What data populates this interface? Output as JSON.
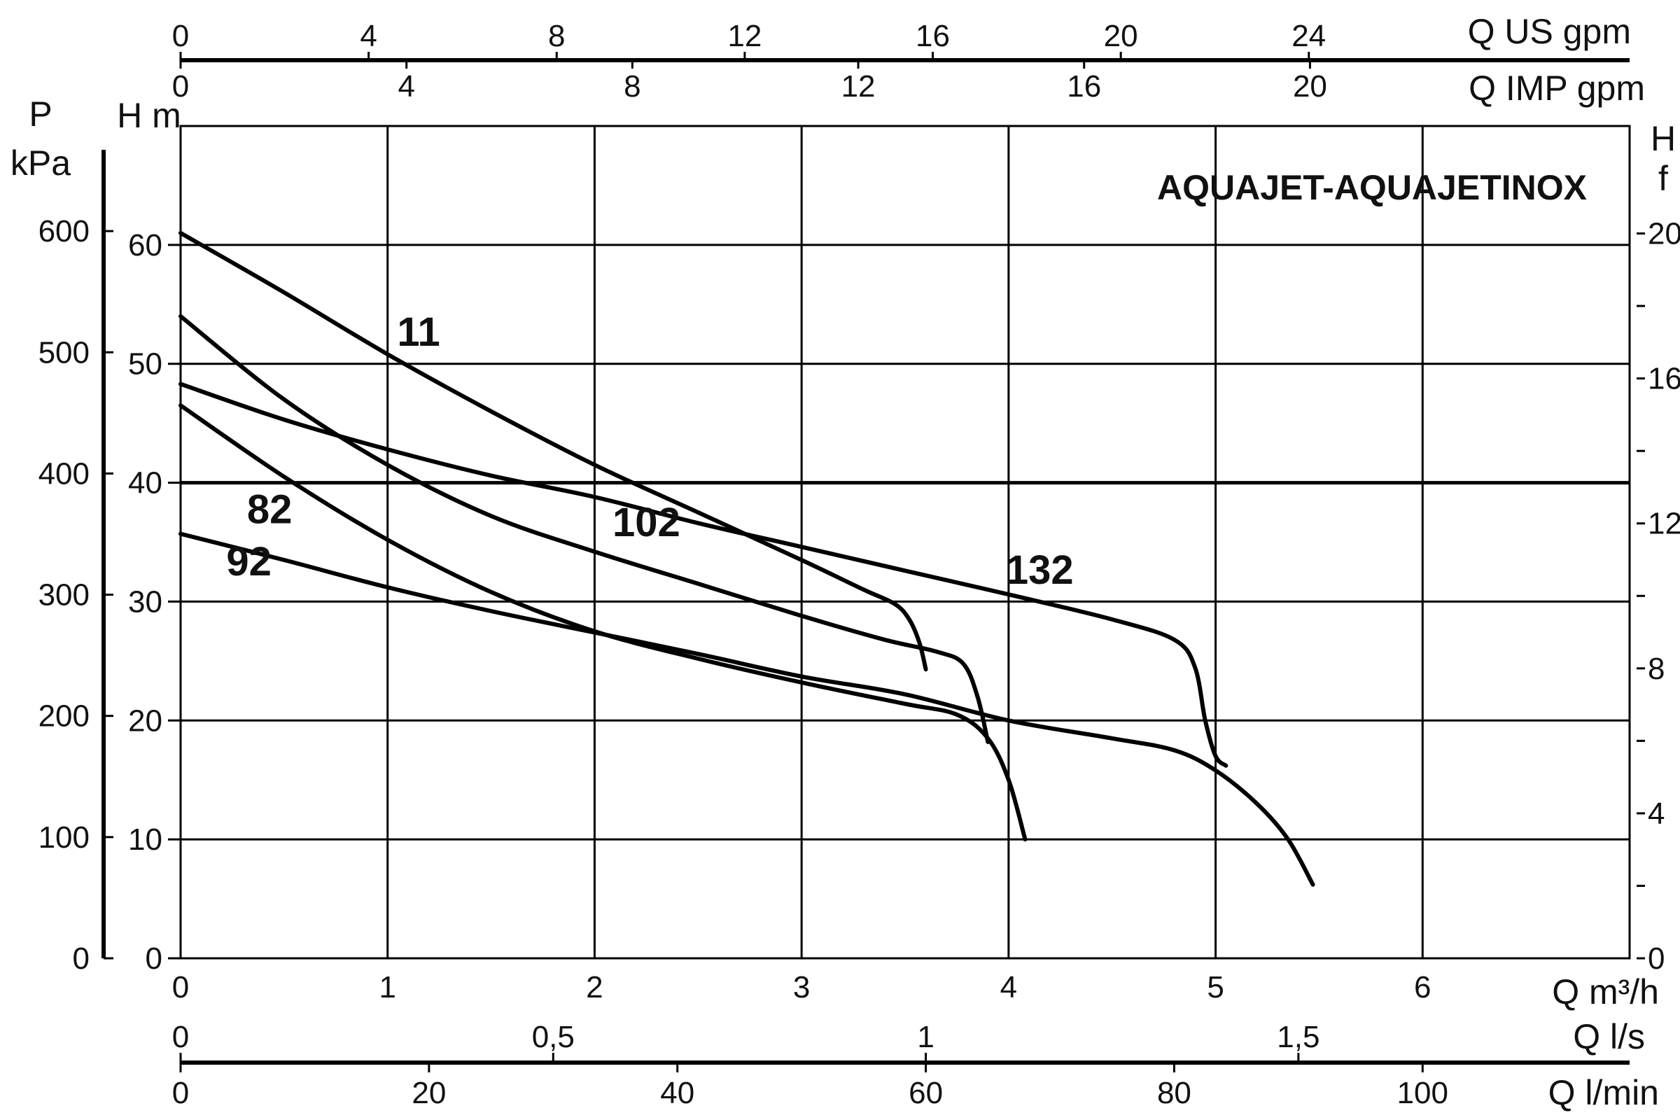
{
  "chart_data": {
    "type": "line",
    "title": "AQUAJET-AQUAJETINOX",
    "xlabel": "Q m³/h",
    "ylabel": "H m",
    "xlim": [
      0,
      7
    ],
    "ylim": [
      0,
      70
    ],
    "grid": true,
    "x_ticks": [
      "0",
      "1",
      "2",
      "3",
      "4",
      "5",
      "6"
    ],
    "y_ticks": [
      "0",
      "10",
      "20",
      "30",
      "40",
      "50",
      "60"
    ],
    "secondary_axes": {
      "pressure": {
        "label_top": "P",
        "label_unit": "kPa",
        "ticks": [
          "0",
          "100",
          "200",
          "300",
          "400",
          "500",
          "600"
        ]
      },
      "head_ft": {
        "label_top": "H",
        "label_unit": "f",
        "ticks": [
          "0",
          "4",
          "8",
          "12",
          "16",
          "20"
        ]
      },
      "us_gpm": {
        "label": "Q US gpm",
        "ticks": [
          "0",
          "4",
          "8",
          "12",
          "16",
          "20",
          "24"
        ]
      },
      "imp_gpm": {
        "label": "Q IMP gpm",
        "ticks": [
          "0",
          "4",
          "8",
          "12",
          "16",
          "20"
        ]
      },
      "l_per_s": {
        "label": "Q l/s",
        "ticks": [
          "0",
          "0,5",
          "1",
          "1,5"
        ]
      },
      "l_per_min": {
        "label": "Q l/min",
        "ticks": [
          "0",
          "20",
          "40",
          "60",
          "80",
          "100"
        ]
      }
    },
    "series": [
      {
        "name": "11",
        "label_at": [
          1.15,
          51.5
        ],
        "points": [
          [
            0,
            61
          ],
          [
            0.5,
            56
          ],
          [
            1.0,
            50.8
          ],
          [
            1.5,
            46
          ],
          [
            2.0,
            41.5
          ],
          [
            2.5,
            37.5
          ],
          [
            3.0,
            33.5
          ],
          [
            3.3,
            31
          ],
          [
            3.45,
            29.8
          ],
          [
            3.52,
            28.5
          ],
          [
            3.57,
            26.5
          ],
          [
            3.6,
            24.3
          ]
        ]
      },
      {
        "name": "102",
        "label_at": [
          2.25,
          35.5
        ],
        "points": [
          [
            0,
            54
          ],
          [
            0.5,
            47
          ],
          [
            1.0,
            41.5
          ],
          [
            1.5,
            37.2
          ],
          [
            2.0,
            34.2
          ],
          [
            2.5,
            31.5
          ],
          [
            3.0,
            28.8
          ],
          [
            3.4,
            26.8
          ],
          [
            3.65,
            25.8
          ],
          [
            3.78,
            24.8
          ],
          [
            3.85,
            22
          ],
          [
            3.9,
            18.2
          ]
        ]
      },
      {
        "name": "132",
        "label_at": [
          4.15,
          31.5
        ],
        "points": [
          [
            0,
            48.3
          ],
          [
            0.5,
            45.3
          ],
          [
            1.0,
            42.8
          ],
          [
            1.5,
            40.6
          ],
          [
            2.0,
            38.8
          ],
          [
            2.5,
            36.6
          ],
          [
            3.0,
            34.6
          ],
          [
            3.5,
            32.6
          ],
          [
            4.0,
            30.6
          ],
          [
            4.5,
            28.5
          ],
          [
            4.8,
            26.8
          ],
          [
            4.9,
            24.5
          ],
          [
            4.95,
            20
          ],
          [
            5.0,
            17
          ],
          [
            5.05,
            16.2
          ]
        ]
      },
      {
        "name": "82",
        "label_at": [
          0.43,
          36.6
        ],
        "points": [
          [
            0,
            46.5
          ],
          [
            0.5,
            40.5
          ],
          [
            1.0,
            35.2
          ],
          [
            1.5,
            30.8
          ],
          [
            2.0,
            27.5
          ],
          [
            2.5,
            25.2
          ],
          [
            3.0,
            23.2
          ],
          [
            3.5,
            21.4
          ],
          [
            3.75,
            20.5
          ],
          [
            3.9,
            18.5
          ],
          [
            4.0,
            15
          ],
          [
            4.08,
            10
          ]
        ]
      },
      {
        "name": "92",
        "label_at": [
          0.33,
          32.2
        ],
        "points": [
          [
            0,
            35.7
          ],
          [
            0.5,
            33.5
          ],
          [
            1.0,
            31.2
          ],
          [
            1.5,
            29.2
          ],
          [
            2.0,
            27.4
          ],
          [
            2.5,
            25.6
          ],
          [
            3.0,
            23.7
          ],
          [
            3.5,
            22.2
          ],
          [
            4.0,
            20
          ],
          [
            4.5,
            18.5
          ],
          [
            4.8,
            17.5
          ],
          [
            5.0,
            15.8
          ],
          [
            5.2,
            13
          ],
          [
            5.35,
            10
          ],
          [
            5.47,
            6.2
          ]
        ]
      }
    ]
  }
}
